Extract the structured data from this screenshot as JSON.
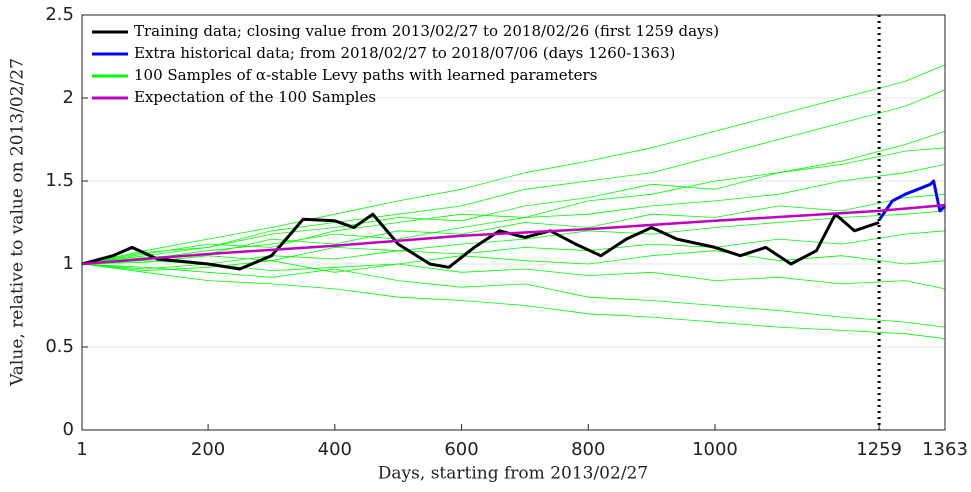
{
  "chart_data": {
    "type": "line",
    "xlabel": "Days, starting from 2013/02/27",
    "ylabel": "Value, relative to value on 2013/02/27",
    "xlim": [
      1,
      1363
    ],
    "ylim": [
      0,
      2.5
    ],
    "xticks": [
      1,
      200,
      400,
      600,
      800,
      1000,
      1259,
      1363
    ],
    "yticks": [
      0,
      0.5,
      1,
      1.5,
      2,
      2.5
    ],
    "grid": true,
    "vline": 1259,
    "legend": "upper left",
    "series": [
      {
        "name": "Training data; closing value from 2013/02/27 to 2018/02/26 (first 1259 days)",
        "color": "#000000",
        "x": [
          1,
          50,
          80,
          120,
          200,
          250,
          300,
          330,
          350,
          400,
          430,
          460,
          500,
          550,
          580,
          620,
          660,
          700,
          740,
          780,
          820,
          860,
          900,
          940,
          1000,
          1040,
          1080,
          1120,
          1160,
          1190,
          1220,
          1259
        ],
        "values": [
          1.0,
          1.05,
          1.1,
          1.03,
          1.0,
          0.97,
          1.05,
          1.18,
          1.27,
          1.26,
          1.22,
          1.3,
          1.12,
          1.0,
          0.98,
          1.1,
          1.2,
          1.16,
          1.2,
          1.12,
          1.05,
          1.15,
          1.22,
          1.15,
          1.1,
          1.05,
          1.1,
          1.0,
          1.08,
          1.3,
          1.2,
          1.25
        ]
      },
      {
        "name": "Extra historical data; from 2018/02/27 to 2018/07/06 (days 1260-1363)",
        "color": "#0000ff",
        "x": [
          1260,
          1280,
          1300,
          1320,
          1340,
          1345,
          1355,
          1363
        ],
        "values": [
          1.27,
          1.38,
          1.42,
          1.45,
          1.48,
          1.5,
          1.32,
          1.35
        ]
      },
      {
        "name": "100 Samples of α-stable Levy paths with learned parameters",
        "color": "#00ff00",
        "x": [
          1,
          100,
          200,
          300,
          400,
          500,
          600,
          700,
          800,
          900,
          1000,
          1100,
          1200,
          1300,
          1363
        ],
        "paths": [
          [
            1.0,
            1.08,
            1.15,
            1.22,
            1.3,
            1.38,
            1.45,
            1.55,
            1.62,
            1.7,
            1.8,
            1.9,
            2.0,
            2.1,
            2.2
          ],
          [
            1.0,
            0.95,
            0.9,
            0.88,
            0.85,
            0.8,
            0.78,
            0.75,
            0.7,
            0.68,
            0.65,
            0.62,
            0.6,
            0.58,
            0.55
          ],
          [
            1.0,
            1.05,
            1.1,
            1.2,
            1.25,
            1.3,
            1.35,
            1.45,
            1.5,
            1.55,
            1.65,
            1.75,
            1.85,
            1.95,
            2.05
          ],
          [
            1.0,
            0.98,
            0.95,
            0.92,
            0.97,
            0.9,
            0.86,
            0.88,
            0.8,
            0.78,
            0.75,
            0.72,
            0.68,
            0.65,
            0.62
          ],
          [
            1.0,
            1.03,
            1.08,
            1.12,
            1.18,
            1.15,
            1.22,
            1.28,
            1.3,
            1.35,
            1.38,
            1.42,
            1.5,
            1.55,
            1.6
          ],
          [
            1.0,
            1.02,
            1.0,
            1.05,
            1.03,
            1.08,
            1.06,
            1.1,
            1.08,
            1.12,
            1.1,
            1.15,
            1.12,
            1.18,
            1.2
          ],
          [
            1.0,
            1.06,
            1.12,
            1.1,
            1.2,
            1.25,
            1.3,
            1.28,
            1.38,
            1.42,
            1.5,
            1.55,
            1.62,
            1.72,
            1.8
          ],
          [
            1.0,
            0.97,
            1.0,
            0.96,
            0.98,
            1.0,
            0.95,
            0.97,
            0.93,
            0.95,
            0.9,
            0.92,
            0.88,
            0.9,
            0.85
          ],
          [
            1.0,
            1.04,
            1.06,
            1.15,
            1.12,
            1.2,
            1.18,
            1.25,
            1.22,
            1.3,
            1.28,
            1.35,
            1.32,
            1.4,
            1.42
          ],
          [
            1.0,
            1.01,
            1.05,
            1.02,
            1.1,
            1.08,
            1.12,
            1.15,
            1.2,
            1.18,
            1.22,
            1.25,
            1.28,
            1.3,
            1.32
          ],
          [
            1.0,
            0.96,
            0.98,
            1.02,
            0.95,
            1.0,
            1.05,
            1.02,
            1.0,
            1.05,
            1.08,
            1.02,
            1.05,
            1.0,
            1.02
          ],
          [
            1.0,
            1.07,
            1.1,
            1.18,
            1.22,
            1.28,
            1.26,
            1.35,
            1.4,
            1.48,
            1.45,
            1.55,
            1.6,
            1.68,
            1.7
          ]
        ]
      },
      {
        "name": "Expectation of the 100 Samples",
        "color": "#bf00bf",
        "x": [
          1,
          200,
          400,
          600,
          800,
          1000,
          1259,
          1363
        ],
        "values": [
          1.0,
          1.06,
          1.11,
          1.17,
          1.21,
          1.26,
          1.32,
          1.355
        ]
      }
    ]
  }
}
